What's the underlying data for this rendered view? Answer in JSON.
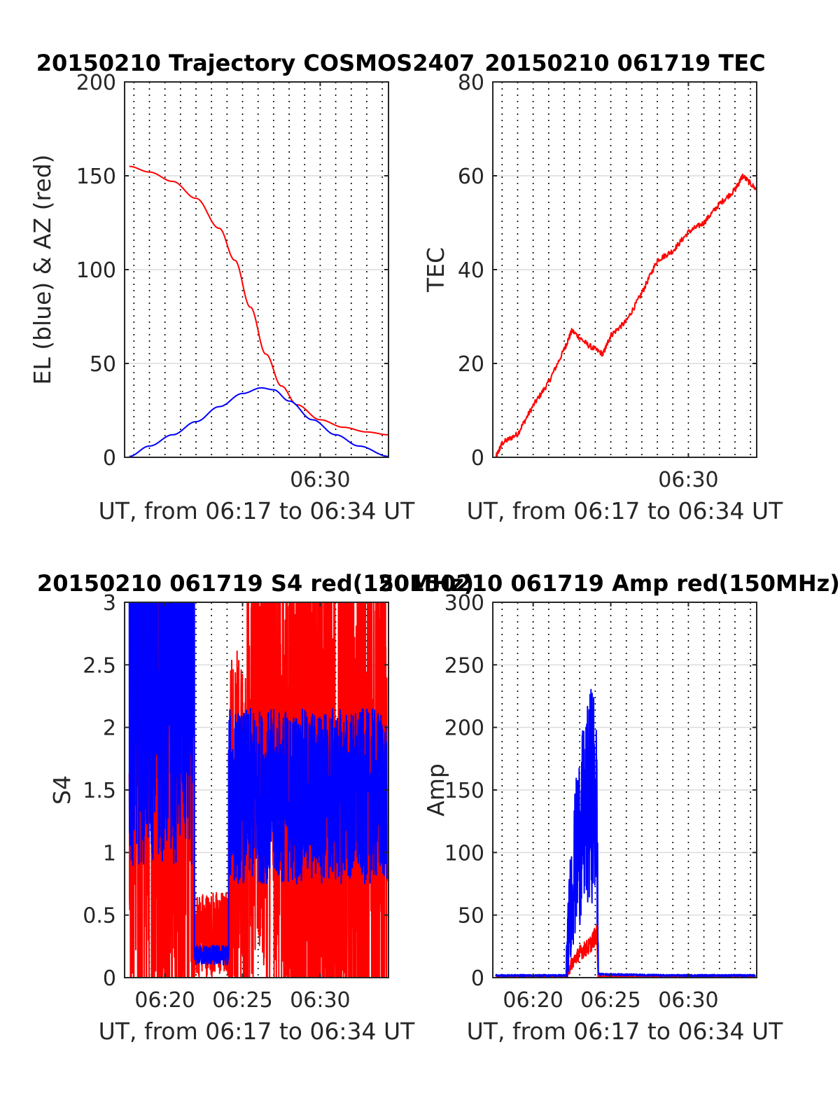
{
  "figure": {
    "background": "#ffffff",
    "grid_color": "#dcdcdc",
    "axis_color": "#262626"
  },
  "chart_data": [
    {
      "id": "trajectory",
      "type": "line",
      "title": "20150210 Trajectory COSMOS2407",
      "xlabel": "UT, from 06:17 to 06:34 UT",
      "ylabel": "EL (blue) & AZ (red)",
      "xlim": [
        17.4,
        34.4
      ],
      "ylim": [
        0,
        200
      ],
      "yticks": [
        0,
        50,
        100,
        150,
        200
      ],
      "xticks": [
        {
          "value": 30,
          "label": "06:30"
        }
      ],
      "minor_dotted_every": 1,
      "series": [
        {
          "color": "#ff0000",
          "x": [
            17.7,
            19,
            20.5,
            22,
            23.5,
            24.5,
            25.5,
            26.5,
            27.5,
            28.5,
            30,
            31.5,
            33,
            34.4
          ],
          "y": [
            155,
            152,
            147,
            138,
            122,
            105,
            80,
            55,
            38,
            28,
            20,
            16,
            13.5,
            12
          ]
        },
        {
          "color": "#0000ff",
          "x": [
            17.7,
            19,
            20.5,
            22,
            23.5,
            25,
            26.2,
            27,
            28,
            29.5,
            31,
            32.5,
            34.4
          ],
          "y": [
            0.5,
            6,
            12,
            19,
            27,
            34,
            37,
            36,
            30,
            20,
            12,
            6,
            0.5
          ]
        }
      ]
    },
    {
      "id": "tec",
      "type": "line",
      "title": "20150210 061719 TEC",
      "xlabel": "UT, from 06:17 to 06:34 UT",
      "ylabel": "TEC",
      "xlim": [
        17.4,
        34.4
      ],
      "ylim": [
        0,
        80
      ],
      "yticks": [
        0,
        20,
        40,
        60,
        80
      ],
      "xticks": [
        {
          "value": 30,
          "label": "06:30"
        }
      ],
      "minor_dotted_every": 1,
      "series": [
        {
          "color": "#ff0000",
          "x": [
            17.6,
            18,
            19,
            20,
            21,
            22,
            22.5,
            23.5,
            24.5,
            25,
            26,
            27,
            28,
            29,
            30,
            31,
            32,
            33,
            33.5,
            34.4
          ],
          "y": [
            0,
            3,
            5,
            11,
            16,
            23,
            27,
            24,
            22,
            26,
            29,
            35,
            42,
            44,
            48,
            50,
            54,
            57,
            60,
            57
          ]
        }
      ]
    },
    {
      "id": "s4",
      "type": "line",
      "title": "20150210 061719 S4 red(150MHz)",
      "xlabel": "UT, from 06:17 to 06:34 UT",
      "ylabel": "S4",
      "xlim": [
        17.4,
        34.4
      ],
      "ylim": [
        0,
        3
      ],
      "yticks": [
        0,
        0.5,
        1,
        1.5,
        2,
        2.5,
        3
      ],
      "xticks": [
        {
          "value": 20,
          "label": "06:20"
        },
        {
          "value": 25,
          "label": "06:25"
        },
        {
          "value": 30,
          "label": "06:30"
        }
      ],
      "minor_dotted_every": 1,
      "series": [
        {
          "name": "red",
          "color": "#ff0000",
          "segments": [
            {
              "x": [
                17.7,
                21.9
              ],
              "base": 2.0,
              "noise": 3.0
            },
            {
              "x": [
                21.9,
                24.1
              ],
              "base": 0.35,
              "noise": 0.35
            },
            {
              "x": [
                24.1,
                25.3
              ],
              "base": 1.2,
              "noise": 1.5
            },
            {
              "x": [
                25.3,
                27.3
              ],
              "base": 2.3,
              "noise": 2.5
            },
            {
              "x": [
                27.3,
                34.3
              ],
              "base": 1.4,
              "noise": 3.0
            }
          ]
        },
        {
          "name": "blue",
          "color": "#0000ff",
          "segments": [
            {
              "x": [
                17.7,
                21.9
              ],
              "base": 2.4,
              "noise": 1.5
            },
            {
              "x": [
                21.9,
                24.1
              ],
              "base": 0.18,
              "noise": 0.08
            },
            {
              "x": [
                24.1,
                34.3
              ],
              "base": 1.45,
              "noise": 0.7
            }
          ]
        }
      ]
    },
    {
      "id": "amp",
      "type": "line",
      "title": "20150210 061719 Amp red(150MHz)",
      "xlabel": "UT, from 06:17 to 06:34 UT",
      "ylabel": "Amp",
      "xlim": [
        17.4,
        34.4
      ],
      "ylim": [
        0,
        300
      ],
      "yticks": [
        0,
        50,
        100,
        150,
        200,
        250,
        300
      ],
      "xticks": [
        {
          "value": 20,
          "label": "06:20"
        },
        {
          "value": 25,
          "label": "06:25"
        },
        {
          "value": 30,
          "label": "06:30"
        }
      ],
      "minor_dotted_every": 1,
      "series": [
        {
          "name": "red",
          "color": "#ff0000",
          "x": [
            17.6,
            22.2,
            22.4,
            23.0,
            23.6,
            24.1,
            24.2,
            34.3
          ],
          "y": [
            0,
            0,
            10,
            20,
            25,
            35,
            0,
            0
          ],
          "noise": 12
        },
        {
          "name": "blue",
          "color": "#0000ff",
          "x": [
            17.6,
            22.1,
            22.4,
            22.9,
            23.4,
            23.8,
            24.1,
            24.2,
            28.5,
            34.3
          ],
          "y": [
            1,
            1,
            60,
            110,
            130,
            150,
            130,
            2,
            1,
            1
          ],
          "noise": 50
        }
      ]
    }
  ]
}
